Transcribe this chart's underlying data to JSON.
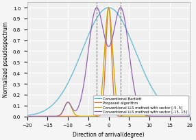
{
  "title": "",
  "xlabel": "Direction of arrival(degree)",
  "ylabel": "Normalized pseudospectrum",
  "xlim": [
    -20,
    20
  ],
  "ylim": [
    0,
    1.05
  ],
  "xticks": [
    -20,
    -15,
    -10,
    -5,
    0,
    5,
    10,
    15,
    20
  ],
  "yticks": [
    0,
    0.1,
    0.2,
    0.3,
    0.4,
    0.5,
    0.6,
    0.7,
    0.8,
    0.9,
    1.0
  ],
  "dashed_lines": [
    -3,
    3
  ],
  "legend": [
    "Conventional Bartlett",
    "Proposed algorithm",
    "Conventional LLS method with sector [-5, 5]",
    "Conventional LLS method with sector [-15, 15]"
  ],
  "colors": {
    "bartlett": "#5bb8d4",
    "proposed": "#e07030",
    "lls_5": "#c8a800",
    "lls_15": "#9060b0"
  },
  "background_color": "#f0f0f0",
  "grid_color": "#ffffff",
  "fontsize": 5.5,
  "legend_fontsize": 3.8
}
